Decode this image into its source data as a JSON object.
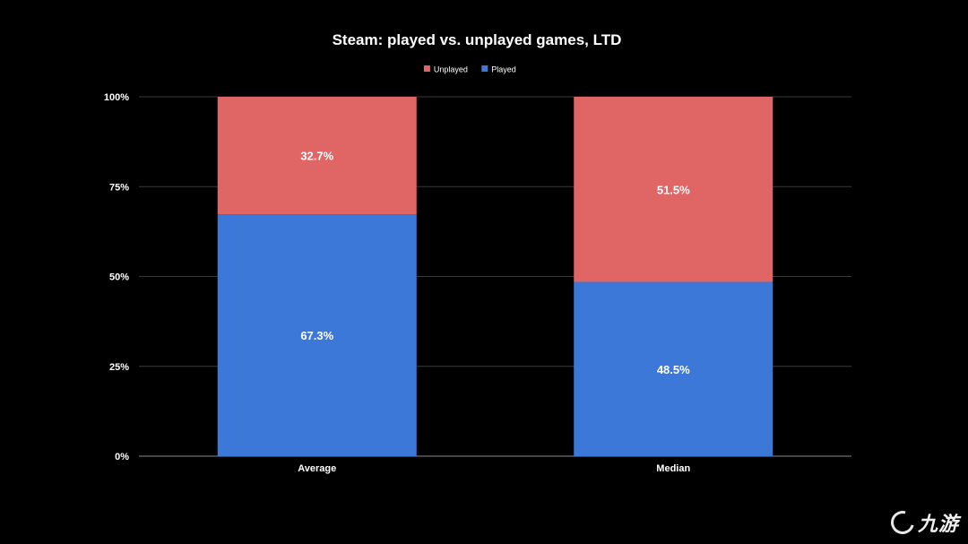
{
  "chart_data": {
    "type": "bar",
    "stacked": true,
    "title": "Steam: played vs. unplayed games, LTD",
    "categories": [
      "Average",
      "Median"
    ],
    "series": [
      {
        "name": "Played",
        "values": [
          67.3,
          48.5
        ],
        "labels": [
          "67.3%",
          "48.5%"
        ],
        "color": "#3c78d8"
      },
      {
        "name": "Unplayed",
        "values": [
          32.7,
          51.5
        ],
        "labels": [
          "32.7%",
          "51.5%"
        ],
        "color": "#e06666"
      }
    ],
    "legend": {
      "position": "top-center",
      "entries": [
        "Unplayed",
        "Played"
      ]
    },
    "ylim": [
      0,
      100
    ],
    "yticks": [
      "0%",
      "25%",
      "50%",
      "75%",
      "100%"
    ],
    "ytick_values": [
      0,
      25,
      50,
      75,
      100
    ],
    "grid": true,
    "xlabel": "",
    "ylabel": ""
  },
  "watermark": {
    "text": "九游"
  },
  "colors": {
    "background": "#000000",
    "text": "#ffffff",
    "grid": "#3a3a3a"
  }
}
